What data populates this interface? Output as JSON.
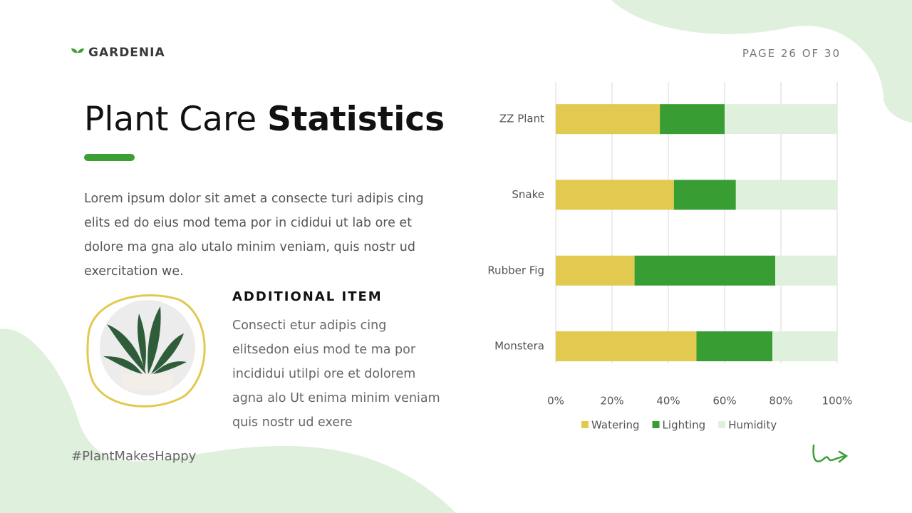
{
  "header": {
    "brand": "GARDENIA",
    "page": "PAGE 26 OF 30"
  },
  "title_light": "Plant Care",
  "title_bold": "Statistics",
  "body": "Lorem ipsum dolor sit amet a consecte turi adipis cing elits ed do eius mod tema por in cididui ut lab ore et dolore ma gna alo utalo minim veniam, quis nostr ud exercitation we.",
  "additional_item": {
    "heading": "ADDITIONAL ITEM",
    "text": "Consecti etur adipis cing elitsedon eius mod te ma por incididui utilpi ore et dolorem agna alo Ut enima minim veniam quis nostr ud exere"
  },
  "hashtag": "#PlantMakesHappy",
  "chart_data": {
    "type": "stacked-bar-horizontal",
    "categories": [
      "ZZ Plant",
      "Snake",
      "Rubber Fig",
      "Monstera"
    ],
    "series": [
      {
        "name": "Watering",
        "color": "#e2c94f",
        "values": [
          37,
          42,
          28,
          50
        ]
      },
      {
        "name": "Lighting",
        "color": "#389e34",
        "values": [
          23,
          22,
          50,
          27
        ]
      },
      {
        "name": "Humidity",
        "color": "#dff0dd",
        "values": [
          40,
          36,
          22,
          23
        ]
      }
    ],
    "xlim": [
      0,
      100
    ],
    "xticks": [
      {
        "value": 0,
        "label": "0%"
      },
      {
        "value": 20,
        "label": "20%"
      },
      {
        "value": 40,
        "label": "40%"
      },
      {
        "value": 60,
        "label": "60%"
      },
      {
        "value": 80,
        "label": "80%"
      },
      {
        "value": 100,
        "label": "100%"
      }
    ],
    "grid": true,
    "legend": "bottom"
  }
}
